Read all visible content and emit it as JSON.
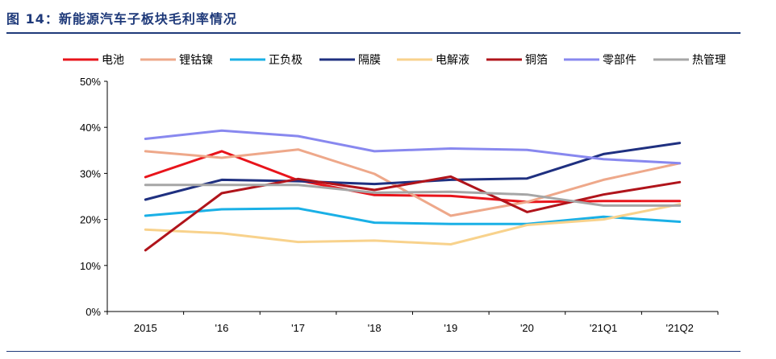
{
  "figure": {
    "title": "图 14：新能源汽车子板块毛利率情况"
  },
  "chart_data": {
    "type": "line",
    "title": "",
    "xlabel": "",
    "ylabel": "",
    "categories": [
      "2015",
      "'16",
      "'17",
      "'18",
      "'19",
      "'20",
      "'21Q1",
      "'21Q2"
    ],
    "yticks": [
      "0%",
      "10%",
      "20%",
      "30%",
      "40%",
      "50%"
    ],
    "ylim": [
      0,
      50
    ],
    "grid": false,
    "legend_position": "top",
    "series": [
      {
        "name": "电池",
        "color": "#e8141b",
        "values": [
          29.2,
          34.8,
          28.5,
          25.3,
          25.1,
          23.8,
          24.0,
          24.0
        ]
      },
      {
        "name": "锂钴镍",
        "color": "#eea88a",
        "values": [
          34.8,
          33.4,
          35.2,
          29.9,
          20.8,
          23.8,
          28.6,
          32.2
        ]
      },
      {
        "name": "正负极",
        "color": "#1ab0e6",
        "values": [
          20.8,
          22.2,
          22.4,
          19.3,
          19.0,
          19.0,
          20.6,
          19.5
        ]
      },
      {
        "name": "隔膜",
        "color": "#1f3080",
        "values": [
          24.3,
          28.6,
          28.3,
          27.7,
          28.6,
          28.9,
          34.2,
          36.6
        ]
      },
      {
        "name": "电解液",
        "color": "#f8d28c",
        "values": [
          17.8,
          17.0,
          15.1,
          15.4,
          14.6,
          18.8,
          20.0,
          23.3
        ]
      },
      {
        "name": "铜箔",
        "color": "#b0141b",
        "values": [
          13.3,
          25.7,
          28.8,
          26.4,
          29.3,
          21.6,
          25.4,
          28.1
        ]
      },
      {
        "name": "零部件",
        "color": "#8888ef",
        "values": [
          37.5,
          39.3,
          38.1,
          34.8,
          35.4,
          35.1,
          33.1,
          32.2
        ]
      },
      {
        "name": "热管理",
        "color": "#a6a6a6",
        "values": [
          27.5,
          27.5,
          27.5,
          25.8,
          26.0,
          25.4,
          23.0,
          23.0
        ]
      }
    ]
  }
}
